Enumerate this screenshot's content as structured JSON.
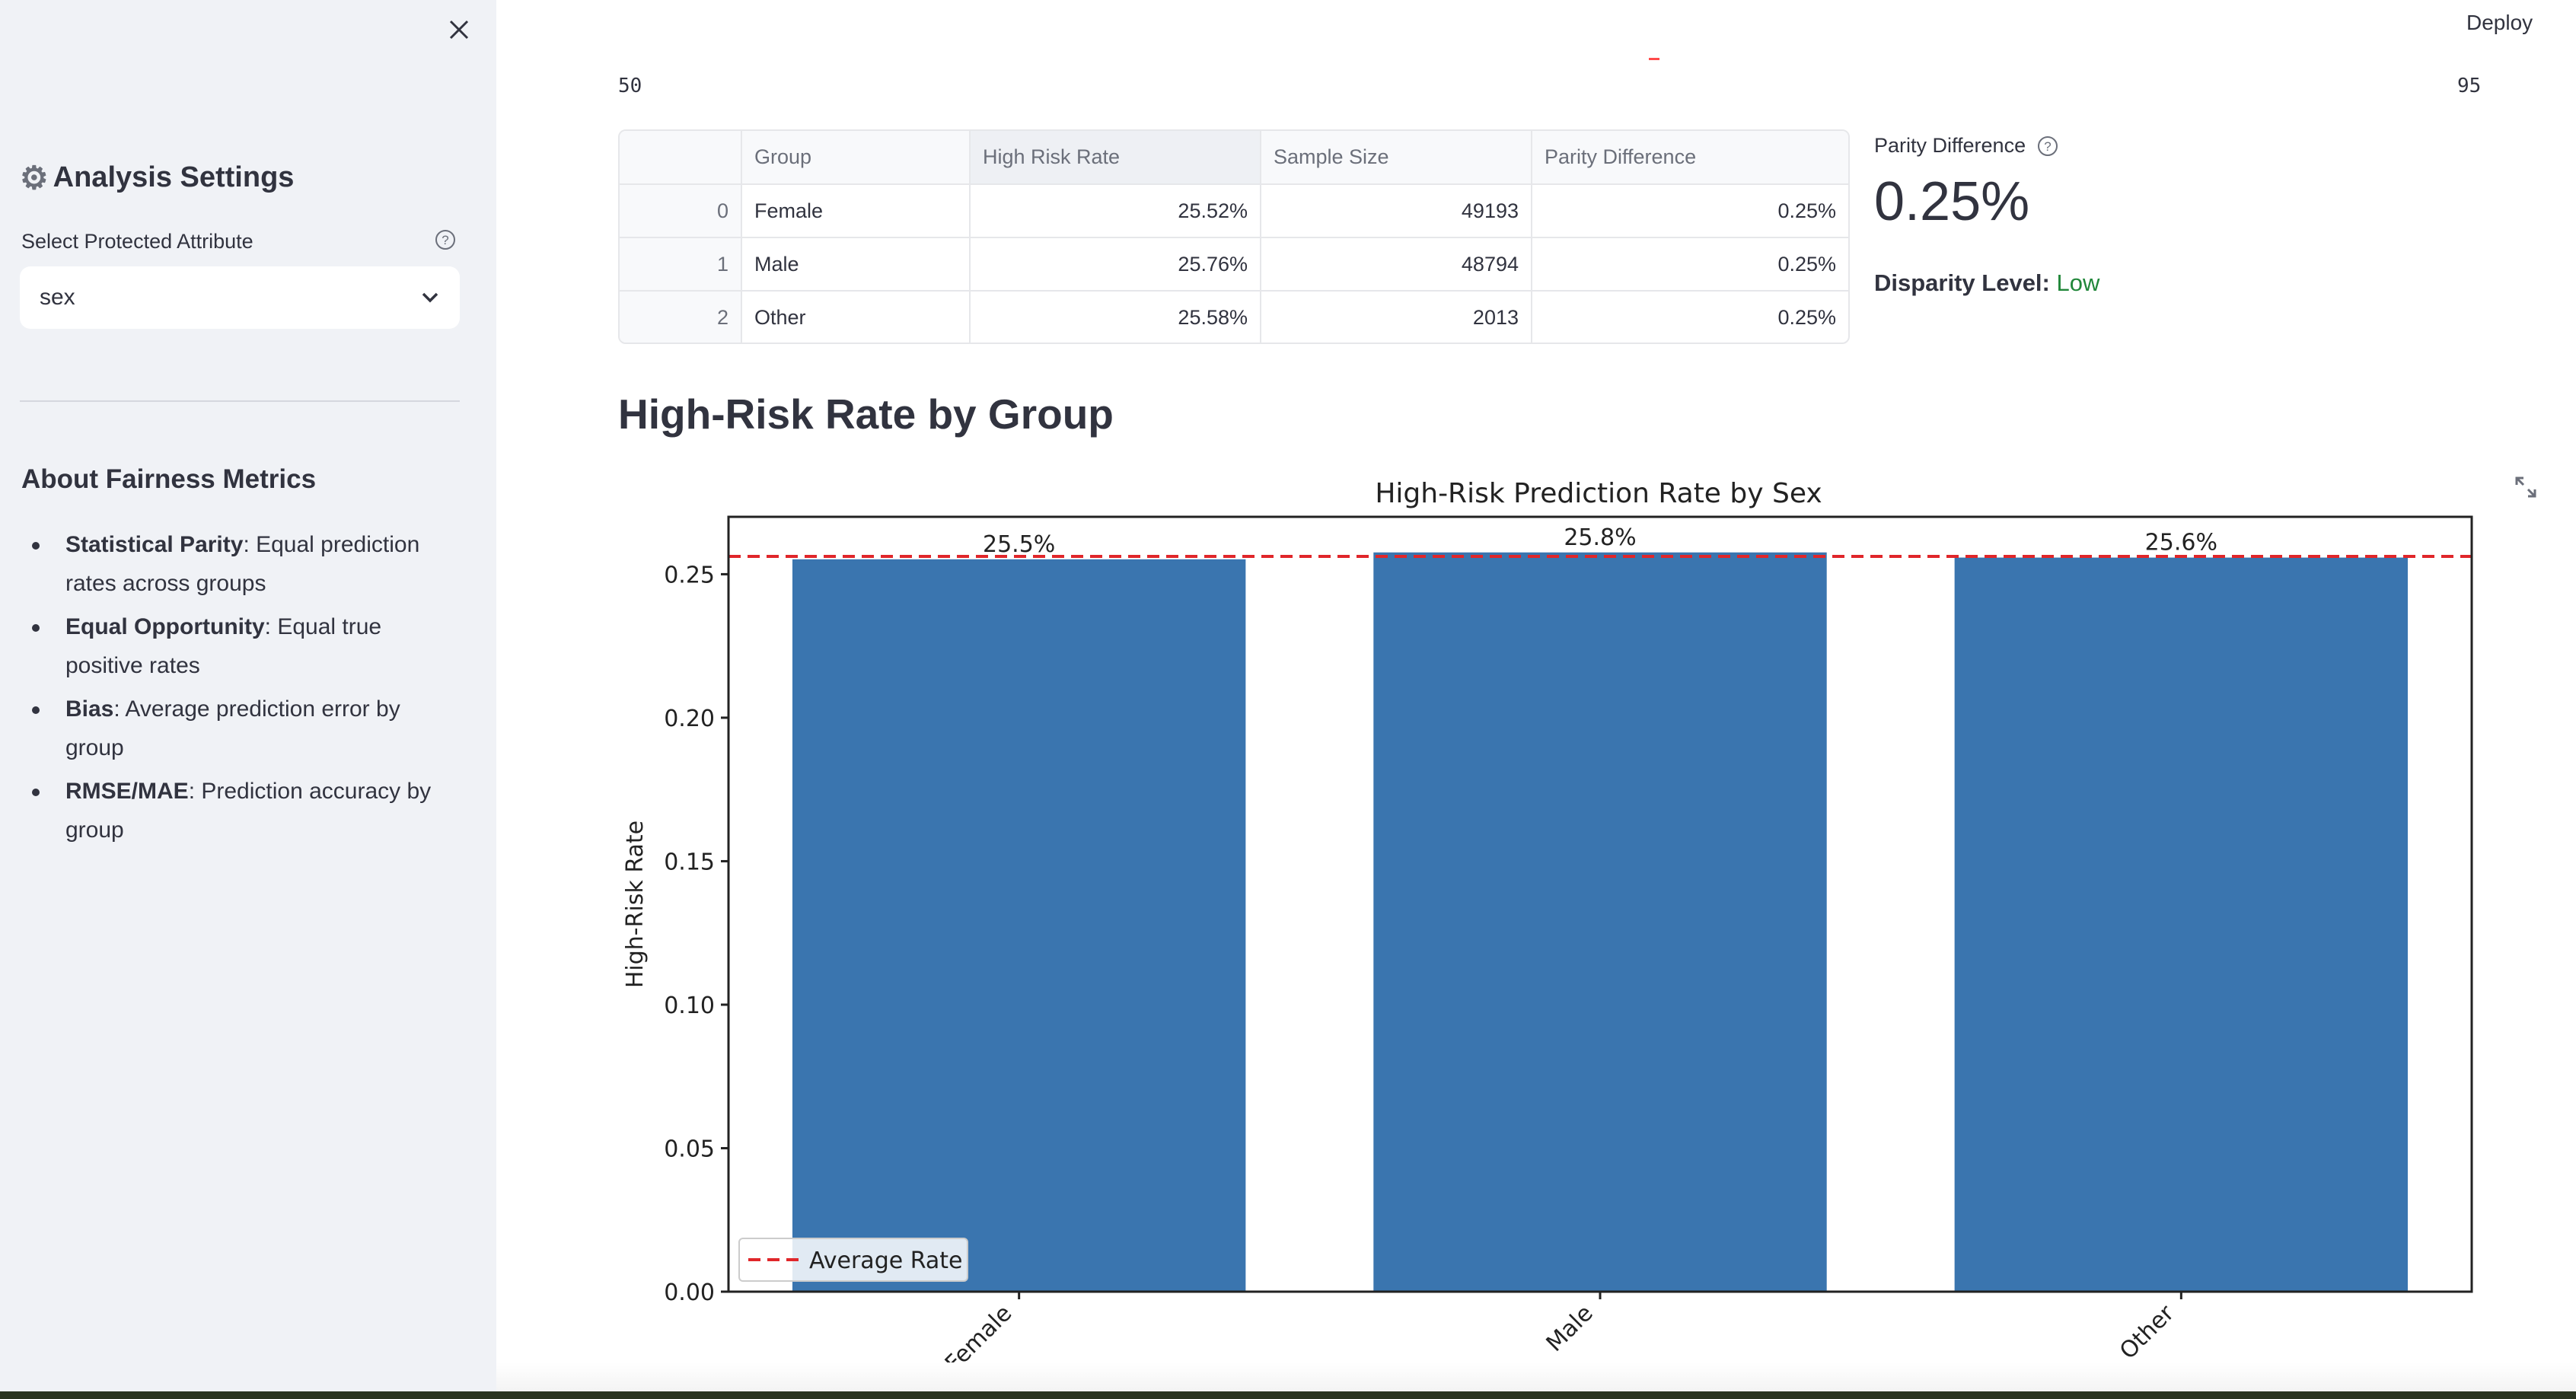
{
  "app": {
    "deploy_label": "Deploy"
  },
  "sidebar": {
    "settings_title": "Analysis Settings",
    "select_label": "Select Protected Attribute",
    "select_value": "sex",
    "about_title": "About Fairness Metrics",
    "metrics": [
      {
        "term": "Statistical Parity",
        "desc": ": Equal prediction rates across groups"
      },
      {
        "term": "Equal Opportunity",
        "desc": ": Equal true positive rates"
      },
      {
        "term": "Bias",
        "desc": ": Average prediction error by group"
      },
      {
        "term": "RMSE/MAE",
        "desc": ": Prediction accuracy by group"
      }
    ]
  },
  "slider": {
    "min": "50",
    "max": "95"
  },
  "table": {
    "columns": [
      "",
      "Group",
      "High Risk Rate",
      "Sample Size",
      "Parity Difference"
    ],
    "rows": [
      [
        "0",
        "Female",
        "25.52%",
        "49193",
        "0.25%"
      ],
      [
        "1",
        "Male",
        "25.76%",
        "48794",
        "0.25%"
      ],
      [
        "2",
        "Other",
        "25.58%",
        "2013",
        "0.25%"
      ]
    ]
  },
  "metric": {
    "label": "Parity Difference",
    "value": "0.25%",
    "disparity_label": "Disparity Level:",
    "disparity_value": "Low"
  },
  "section_heading": "High-Risk Rate by Group",
  "chart_data": {
    "type": "bar",
    "title": "High-Risk Prediction Rate by Sex",
    "xlabel": "",
    "ylabel": "High-Risk Rate",
    "categories": [
      "Female",
      "Male",
      "Other"
    ],
    "values": [
      0.2552,
      0.2576,
      0.2558
    ],
    "data_labels": [
      "25.5%",
      "25.8%",
      "25.6%"
    ],
    "average_rate": 0.2562,
    "ylim": [
      0,
      0.27
    ],
    "yticks": [
      0.0,
      0.05,
      0.1,
      0.15,
      0.2,
      0.25
    ],
    "ytick_labels": [
      "0.00",
      "0.05",
      "0.10",
      "0.15",
      "0.20",
      "0.25"
    ],
    "legend": [
      "Average Rate"
    ],
    "legend_position": "lower-left",
    "bar_color": "#3a75af",
    "avg_line_color": "#e0262a",
    "grid": false
  }
}
